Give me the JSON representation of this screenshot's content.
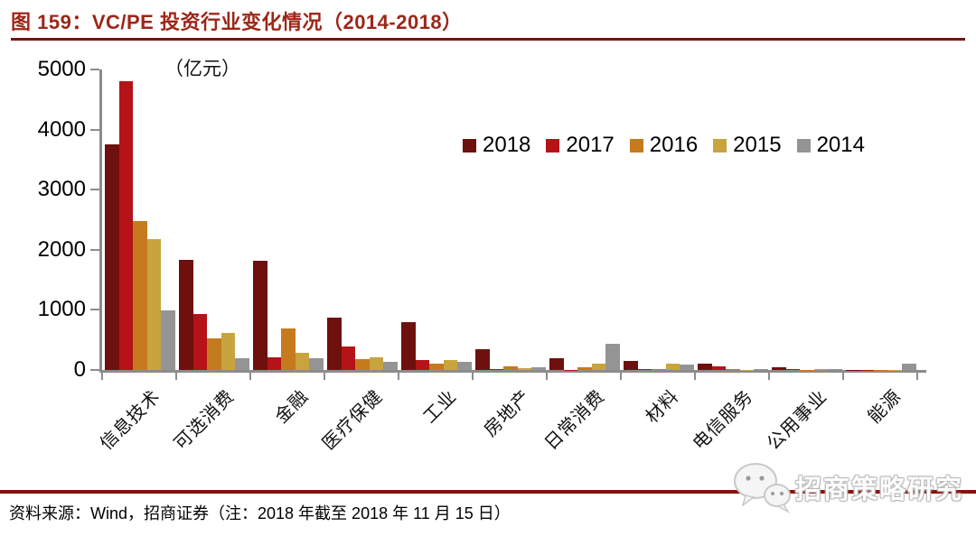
{
  "figure": {
    "title": "图 159：VC/PE 投资行业变化情况（2014-2018）",
    "unit_label": "（亿元）",
    "source_note": "资料来源：Wind，招商证券（注：2018 年截至 2018 年 11 月 15 日）",
    "watermark_text": "招商策略研究"
  },
  "colors": {
    "title": "#9c2718",
    "title_rule": "#7a150d",
    "bottom_rule": "#8c0f08",
    "axis": "#8c8c8c"
  },
  "chart_data": {
    "type": "bar",
    "title": "VC/PE 投资行业变化情况（2014-2018）",
    "unit": "亿元",
    "categories": [
      "信息技术",
      "可选消费",
      "金融",
      "医疗保健",
      "工业",
      "房地产",
      "日常消费",
      "材料",
      "电信服务",
      "公用事业",
      "能源"
    ],
    "series": [
      {
        "name": "2018",
        "color": "#6e100e",
        "values": [
          3750,
          1830,
          1820,
          870,
          790,
          340,
          190,
          150,
          100,
          45,
          5
        ]
      },
      {
        "name": "2017",
        "color": "#b51317",
        "values": [
          4800,
          930,
          210,
          390,
          170,
          10,
          5,
          20,
          55,
          10,
          5
        ]
      },
      {
        "name": "2016",
        "color": "#c67a1e",
        "values": [
          2480,
          520,
          690,
          180,
          110,
          60,
          40,
          15,
          10,
          5,
          5
        ]
      },
      {
        "name": "2015",
        "color": "#c8a43e",
        "values": [
          2170,
          610,
          280,
          210,
          170,
          30,
          100,
          100,
          5,
          10,
          5
        ]
      },
      {
        "name": "2014",
        "color": "#949494",
        "values": [
          990,
          200,
          190,
          130,
          140,
          50,
          430,
          90,
          10,
          10,
          100
        ]
      }
    ],
    "ylim": [
      0,
      5000
    ],
    "yticks": [
      0,
      1000,
      2000,
      3000,
      4000,
      5000
    ],
    "grid": false,
    "legend_position": "top-right"
  }
}
